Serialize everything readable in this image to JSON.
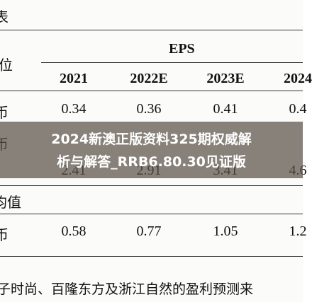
{
  "table": {
    "corner": "表",
    "group_header": "EPS",
    "unit_label": "位",
    "columns": [
      "2021",
      "2022E",
      "2023E",
      "2024"
    ],
    "rows": [
      {
        "label": "币",
        "values": [
          "0.34",
          "0.36",
          "0.41",
          "0.4"
        ]
      },
      {
        "label": "币",
        "values": [
          "2.41",
          "2.91",
          "3.41",
          "4.6"
        ]
      },
      {
        "label": "均值",
        "values": []
      },
      {
        "label": "币",
        "values": [
          "0.58",
          "0.77",
          "1.05",
          "1.2"
        ]
      }
    ],
    "footnote": "子时尚、百隆东方及浙江自然的盈利预测来"
  },
  "overlay": {
    "line1": "2024新澳正版资料325期权威解",
    "line2": "析与解答_RRB6.80.30见证版"
  }
}
